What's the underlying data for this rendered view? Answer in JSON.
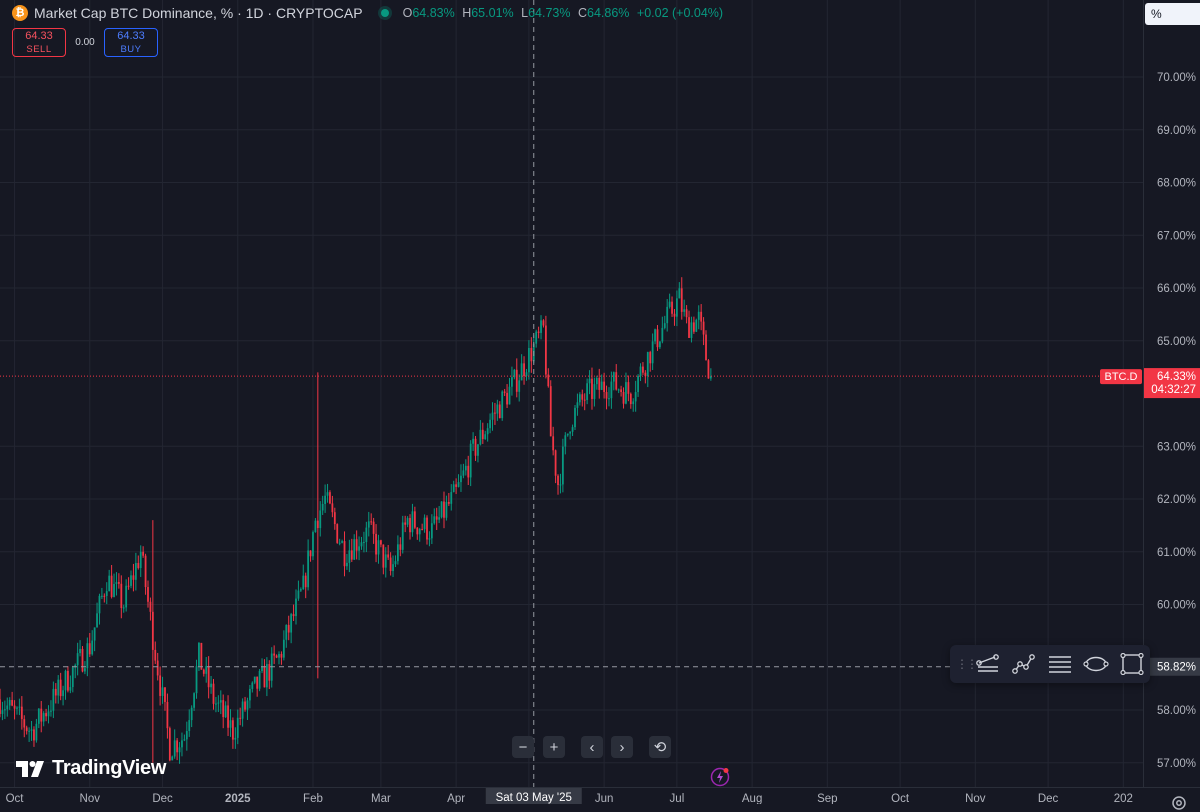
{
  "legend": {
    "title": "Market Cap BTC Dominance, % · 1D · CRYPTOCAP",
    "icon": "bitcoin-icon",
    "ohlc": [
      {
        "key": "O",
        "value": "64.83%"
      },
      {
        "key": "H",
        "value": "65.01%"
      },
      {
        "key": "L",
        "value": "64.73%"
      },
      {
        "key": "C",
        "value": "64.86%"
      }
    ],
    "change": "+0.02 (+0.04%)"
  },
  "trade": {
    "sell_price": "64.33",
    "sell_label": "SELL",
    "spread": "0.00",
    "buy_price": "64.33",
    "buy_label": "BUY"
  },
  "price_axis": {
    "unit": "%",
    "ticks": [
      "70.00%",
      "69.00%",
      "68.00%",
      "67.00%",
      "66.00%",
      "65.00%",
      "63.00%",
      "62.00%",
      "61.00%",
      "60.00%",
      "58.00%",
      "57.00%"
    ],
    "crosshair_price": "58.82%",
    "last_price": "64.33%",
    "countdown": "04:32:27",
    "symbol_tag": "BTC.D"
  },
  "time_axis": {
    "labels": [
      "Oct",
      "Nov",
      "Dec",
      "2025",
      "Feb",
      "Mar",
      "Apr",
      "Jun",
      "Jul",
      "Aug",
      "Sep",
      "Oct",
      "Nov",
      "Dec",
      "202"
    ],
    "crosshair_date": "Sat 03 May '25"
  },
  "toolbar": {
    "tools": [
      "trend-line-tool-icon",
      "path-tool-icon",
      "horizontal-lines-tool-icon",
      "ellipse-tool-icon",
      "rectangle-tool-icon"
    ]
  },
  "nav": {
    "zoom_out": "−",
    "zoom_in": "+",
    "scroll_left": "‹",
    "scroll_right": "›",
    "reset": "⟲"
  },
  "branding": {
    "name": "TradingView"
  },
  "colors": {
    "background": "#161823",
    "up": "#089981",
    "down": "#f23645",
    "grid": "#232632",
    "price_line": "#f23645",
    "buy": "#2962ff"
  },
  "chart_data": {
    "type": "candlestick",
    "ylim": [
      56.8,
      71.2
    ],
    "x_start": "2024-09-25",
    "x_end": "2026-01-12",
    "close_key_points": [
      [
        "2024-09-25",
        58.2
      ],
      [
        "2024-10-08",
        57.6
      ],
      [
        "2024-10-20",
        58.4
      ],
      [
        "2024-11-01",
        59.2
      ],
      [
        "2024-11-08",
        60.5
      ],
      [
        "2024-11-15",
        60.0
      ],
      [
        "2024-11-22",
        61.0
      ],
      [
        "2024-11-27",
        59.4
      ],
      [
        "2024-12-04",
        57.3
      ],
      [
        "2024-12-10",
        57.5
      ],
      [
        "2024-12-16",
        59.0
      ],
      [
        "2024-12-22",
        58.2
      ],
      [
        "2024-12-30",
        57.6
      ],
      [
        "2025-01-08",
        58.4
      ],
      [
        "2025-01-18",
        59.0
      ],
      [
        "2025-01-28",
        60.3
      ],
      [
        "2025-02-02",
        61.6
      ],
      [
        "2025-02-06",
        62.0
      ],
      [
        "2025-02-14",
        61.0
      ],
      [
        "2025-02-24",
        61.4
      ],
      [
        "2025-03-05",
        60.6
      ],
      [
        "2025-03-12",
        61.6
      ],
      [
        "2025-03-22",
        61.4
      ],
      [
        "2025-04-01",
        62.1
      ],
      [
        "2025-04-08",
        62.9
      ],
      [
        "2025-04-15",
        63.5
      ],
      [
        "2025-04-25",
        64.2
      ],
      [
        "2025-05-02",
        64.8
      ],
      [
        "2025-05-07",
        65.2
      ],
      [
        "2025-05-10",
        63.2
      ],
      [
        "2025-05-13",
        62.3
      ],
      [
        "2025-05-18",
        63.5
      ],
      [
        "2025-05-25",
        64.0
      ],
      [
        "2025-06-04",
        64.2
      ],
      [
        "2025-06-12",
        64.0
      ],
      [
        "2025-06-20",
        64.8
      ],
      [
        "2025-06-28",
        65.5
      ],
      [
        "2025-07-02",
        65.8
      ],
      [
        "2025-07-05",
        65.3
      ],
      [
        "2025-07-10",
        65.4
      ],
      [
        "2025-07-13",
        64.7
      ],
      [
        "2025-07-15",
        64.33
      ]
    ],
    "spikes": [
      {
        "date": "2025-02-03",
        "high": 64.4,
        "low": 58.6
      },
      {
        "date": "2024-11-27",
        "high": 61.6,
        "low": 57.0
      }
    ],
    "last_close": 64.33,
    "crosshair": {
      "date": "2025-05-03",
      "price": 58.82
    }
  }
}
